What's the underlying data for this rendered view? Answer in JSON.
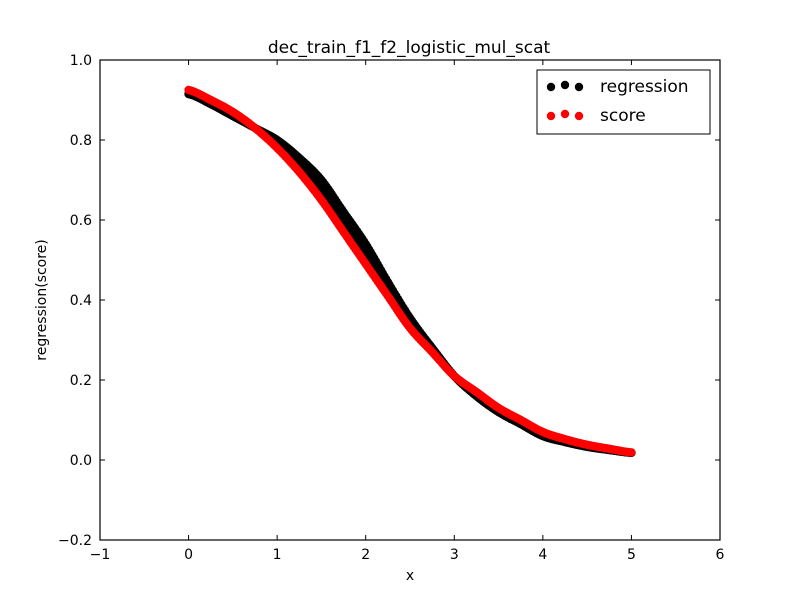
{
  "chart_data": {
    "type": "scatter",
    "title": "dec_train_f1_f2_logistic_mul_scat",
    "xlabel": "x",
    "ylabel": "regression(score)",
    "xlim": [
      -1,
      6
    ],
    "ylim": [
      -0.2,
      1.0
    ],
    "xticks": [
      -1,
      0,
      1,
      2,
      3,
      4,
      5,
      6
    ],
    "yticks": [
      -0.2,
      0.0,
      0.2,
      0.4,
      0.6,
      0.8,
      1.0
    ],
    "xtick_labels": [
      "−1",
      "0",
      "1",
      "2",
      "3",
      "4",
      "5",
      "6"
    ],
    "ytick_labels": [
      "−0.2",
      "0.0",
      "0.2",
      "0.4",
      "0.6",
      "0.8",
      "1.0"
    ],
    "grid": false,
    "legend_position": "top-right",
    "series": [
      {
        "name": "regression",
        "color": "#000000",
        "x": [
          0.0,
          0.25,
          0.5,
          0.75,
          1.0,
          1.25,
          1.5,
          1.75,
          2.0,
          2.25,
          2.5,
          2.75,
          3.0,
          3.25,
          3.5,
          3.75,
          4.0,
          4.25,
          4.5,
          4.75,
          5.0
        ],
        "y": [
          0.915,
          0.89,
          0.86,
          0.83,
          0.79,
          0.74,
          0.68,
          0.6,
          0.52,
          0.43,
          0.35,
          0.28,
          0.21,
          0.16,
          0.12,
          0.09,
          0.06,
          0.045,
          0.033,
          0.025,
          0.018
        ],
        "band": [
          0.915,
          0.89,
          0.86,
          0.83,
          0.8,
          0.755,
          0.7,
          0.62,
          0.54,
          0.445,
          0.355,
          0.28,
          0.21,
          0.16,
          0.12,
          0.09,
          0.06,
          0.045,
          0.033,
          0.025,
          0.018
        ]
      },
      {
        "name": "score",
        "color": "#ff0000",
        "x": [
          0.0,
          0.25,
          0.5,
          0.75,
          1.0,
          1.25,
          1.5,
          1.75,
          2.0,
          2.25,
          2.5,
          2.75,
          3.0,
          3.25,
          3.5,
          3.75,
          4.0,
          4.25,
          4.5,
          4.75,
          5.0
        ],
        "y": [
          0.925,
          0.9,
          0.87,
          0.83,
          0.78,
          0.72,
          0.65,
          0.57,
          0.49,
          0.41,
          0.33,
          0.27,
          0.21,
          0.17,
          0.13,
          0.1,
          0.07,
          0.052,
          0.038,
          0.028,
          0.019
        ]
      }
    ]
  }
}
